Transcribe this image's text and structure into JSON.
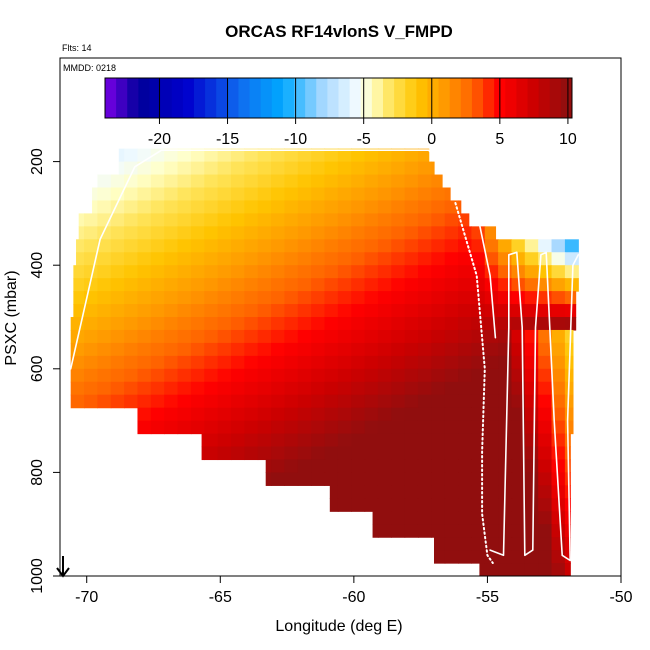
{
  "chart_data": {
    "type": "heatmap",
    "title": "ORCAS RF14vlonS V_FMPD",
    "subtitle_left": "Flts: 14",
    "panel_note": "MMDD: 0218",
    "xlabel": "Longitude (deg E)",
    "ylabel": "PSXC (mbar)",
    "xlim": [
      -71,
      -50
    ],
    "ylim": [
      1000,
      0
    ],
    "x_ticks": [
      -70,
      -65,
      -60,
      -55,
      -50
    ],
    "x_tick_labels": [
      "-70",
      "-65",
      "-60",
      "-55",
      "-50"
    ],
    "y_ticks": [
      200,
      400,
      600,
      800,
      1000
    ],
    "y_tick_labels": [
      "200",
      "400",
      "600",
      "800",
      "1000"
    ],
    "colorbar": {
      "range": [
        -24,
        10.3
      ],
      "ticks": [
        -20,
        -15,
        -10,
        -5,
        0,
        5,
        10
      ],
      "tick_labels": [
        "-20",
        "-15",
        "-10",
        "-5",
        "0",
        "5",
        "10"
      ],
      "stops": [
        {
          "v": -24,
          "c": "#7a00e6"
        },
        {
          "v": -21.5,
          "c": "#00009a"
        },
        {
          "v": -18,
          "c": "#0000cd"
        },
        {
          "v": -14,
          "c": "#0f6ef0"
        },
        {
          "v": -11,
          "c": "#00a8ff"
        },
        {
          "v": -8,
          "c": "#a6d8ff"
        },
        {
          "v": -5.5,
          "c": "#f2fbff"
        },
        {
          "v": -4.5,
          "c": "#ffffc8"
        },
        {
          "v": -3,
          "c": "#ffe45a"
        },
        {
          "v": -1,
          "c": "#ffc400"
        },
        {
          "v": 1,
          "c": "#ff9800"
        },
        {
          "v": 3,
          "c": "#ff6300"
        },
        {
          "v": 5,
          "c": "#ff0000"
        },
        {
          "v": 7.5,
          "c": "#cc0000"
        },
        {
          "v": 10.3,
          "c": "#8a1010"
        }
      ]
    },
    "grid": {
      "lon_start": -70.6,
      "lon_step": 0.5,
      "lon_cells": 38,
      "p_start": 175,
      "p_step": 25,
      "p_rows": 33,
      "row_extents": [
        [
          -68.8,
          -57.2
        ],
        [
          -68.8,
          -57.0
        ],
        [
          -69.6,
          -56.7
        ],
        [
          -69.8,
          -56.4
        ],
        [
          -69.8,
          -56.0
        ],
        [
          -70.3,
          -55.7
        ],
        [
          -70.3,
          -54.7
        ],
        [
          -70.4,
          -51.4
        ],
        [
          -70.4,
          -51.4
        ],
        [
          -70.5,
          -51.6
        ],
        [
          -70.5,
          -51.6
        ],
        [
          -70.5,
          -51.7
        ],
        [
          -70.5,
          -51.7
        ],
        [
          -70.6,
          -51.7
        ],
        [
          -70.6,
          -51.8
        ],
        [
          -70.6,
          -51.8
        ],
        [
          -70.6,
          -51.8
        ],
        [
          -70.6,
          -51.8
        ],
        [
          -70.6,
          -51.8
        ],
        [
          -70.6,
          -51.8
        ],
        [
          -68.1,
          -51.8
        ],
        [
          -68.1,
          -51.8
        ],
        [
          -65.7,
          -51.9
        ],
        [
          -65.7,
          -51.9
        ],
        [
          -63.3,
          -51.9
        ],
        [
          -63.3,
          -51.9
        ],
        [
          -60.9,
          -51.9
        ],
        [
          -60.9,
          -51.9
        ],
        [
          -59.3,
          -51.9
        ],
        [
          -59.3,
          -51.9
        ],
        [
          -57.0,
          -51.9
        ],
        [
          -57.0,
          -51.9
        ],
        [
          -55.3,
          -51.9
        ]
      ]
    },
    "flight_tracks": [
      {
        "name": "solid",
        "points": [
          [
            -70.6,
            600
          ],
          [
            -69.5,
            350
          ],
          [
            -68.2,
            210
          ],
          [
            -67.2,
            178
          ],
          [
            -57.2,
            178
          ],
          [
            -56.0,
            250
          ],
          [
            -55.3,
            320
          ],
          [
            -54.9,
            420
          ],
          [
            -54.7,
            540
          ]
        ]
      },
      {
        "name": "dotted",
        "points": [
          [
            -56.2,
            280
          ],
          [
            -55.4,
            420
          ],
          [
            -55.1,
            600
          ],
          [
            -55.2,
            760
          ],
          [
            -55.2,
            880
          ],
          [
            -55.0,
            960
          ],
          [
            -54.8,
            975
          ]
        ]
      },
      {
        "name": "profiles",
        "points": [
          [
            -54.9,
            950
          ],
          [
            -54.4,
            960
          ],
          [
            -54.2,
            520
          ],
          [
            -54.2,
            380
          ],
          [
            -53.9,
            375
          ],
          [
            -53.7,
            520
          ],
          [
            -53.6,
            960
          ],
          [
            -53.3,
            950
          ],
          [
            -53.2,
            520
          ],
          [
            -53.0,
            380
          ],
          [
            -52.8,
            375
          ],
          [
            -52.5,
            700
          ],
          [
            -52.2,
            960
          ],
          [
            -51.9,
            970
          ],
          [
            -52.0,
            700
          ],
          [
            -51.8,
            400
          ],
          [
            -51.6,
            380
          ]
        ]
      }
    ]
  }
}
